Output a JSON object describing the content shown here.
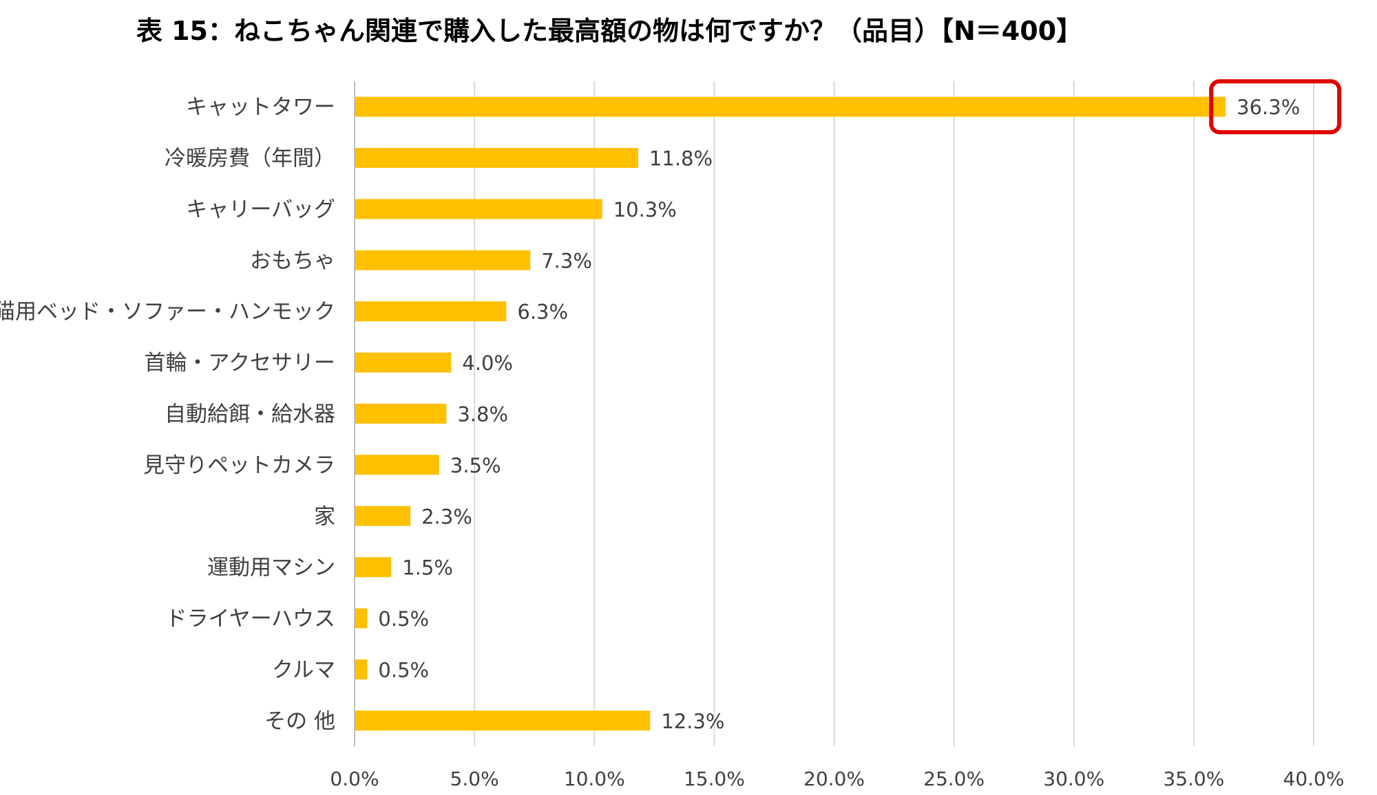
{
  "chart_data": {
    "type": "bar",
    "orientation": "horizontal",
    "title": "表 15：ねこちゃん関連で購入した最高額の物は何ですか？（品目）【N＝400】",
    "categories": [
      "キャットタワー",
      "冷暖房費（年間）",
      "キャリーバッグ",
      "おもちゃ",
      "猫用ベッド・ソファー・ハンモック",
      "首輪・アクセサリー",
      "自動給餌・給水器",
      "見守りペットカメラ",
      "家",
      "運動用マシン",
      "ドライヤーハウス",
      "クルマ",
      "その 他"
    ],
    "values": [
      36.3,
      11.8,
      10.3,
      7.3,
      6.3,
      4.0,
      3.8,
      3.5,
      2.3,
      1.5,
      0.5,
      0.5,
      12.3
    ],
    "value_labels": [
      "36.3%",
      "11.8%",
      "10.3%",
      "7.3%",
      "6.3%",
      "4.0%",
      "3.8%",
      "3.5%",
      "2.3%",
      "1.5%",
      "0.5%",
      "0.5%",
      "12.3%"
    ],
    "xticks": [
      "0.0%",
      "5.0%",
      "10.0%",
      "15.0%",
      "20.0%",
      "25.0%",
      "30.0%",
      "35.0%",
      "40.0%"
    ],
    "xlim": [
      0,
      40
    ],
    "grid": true,
    "legend": "none",
    "highlight_index": 0,
    "colors": {
      "bar": "#FFC000",
      "grid": "#D9D9D9",
      "axis": "#BFBFBF",
      "highlight": "#E00000"
    }
  }
}
